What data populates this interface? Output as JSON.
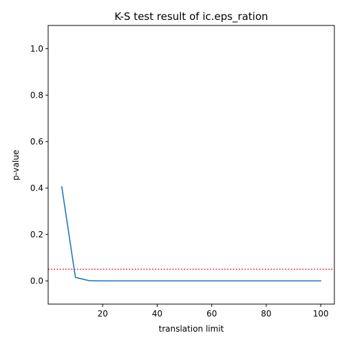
{
  "chart_data": {
    "type": "line",
    "title": "K-S test result of ic.eps_ration",
    "xlabel": "translation limit",
    "ylabel": "p-value",
    "xlim": [
      0,
      105
    ],
    "ylim": [
      -0.1,
      1.1
    ],
    "x_ticks": [
      20,
      40,
      60,
      80,
      100
    ],
    "y_ticks": [
      0.0,
      0.2,
      0.4,
      0.6,
      0.8,
      1.0
    ],
    "series": [
      {
        "color": "#1f77b4",
        "x": [
          5,
          10,
          15,
          20,
          25,
          30,
          35,
          40,
          45,
          50,
          55,
          60,
          65,
          70,
          75,
          80,
          85,
          90,
          95,
          100
        ],
        "y": [
          0.405,
          0.015,
          0.001,
          0.0,
          0.0,
          0.0,
          0.0,
          0.0,
          0.0,
          0.0,
          0.0,
          0.0,
          0.0,
          0.0,
          0.0,
          0.0,
          0.0,
          0.0,
          0.0,
          0.0
        ]
      }
    ],
    "reference_lines": [
      {
        "orientation": "horizontal",
        "y": 0.05,
        "color": "#ff0000",
        "style": "dotted"
      }
    ],
    "grid": false,
    "legend": false
  }
}
